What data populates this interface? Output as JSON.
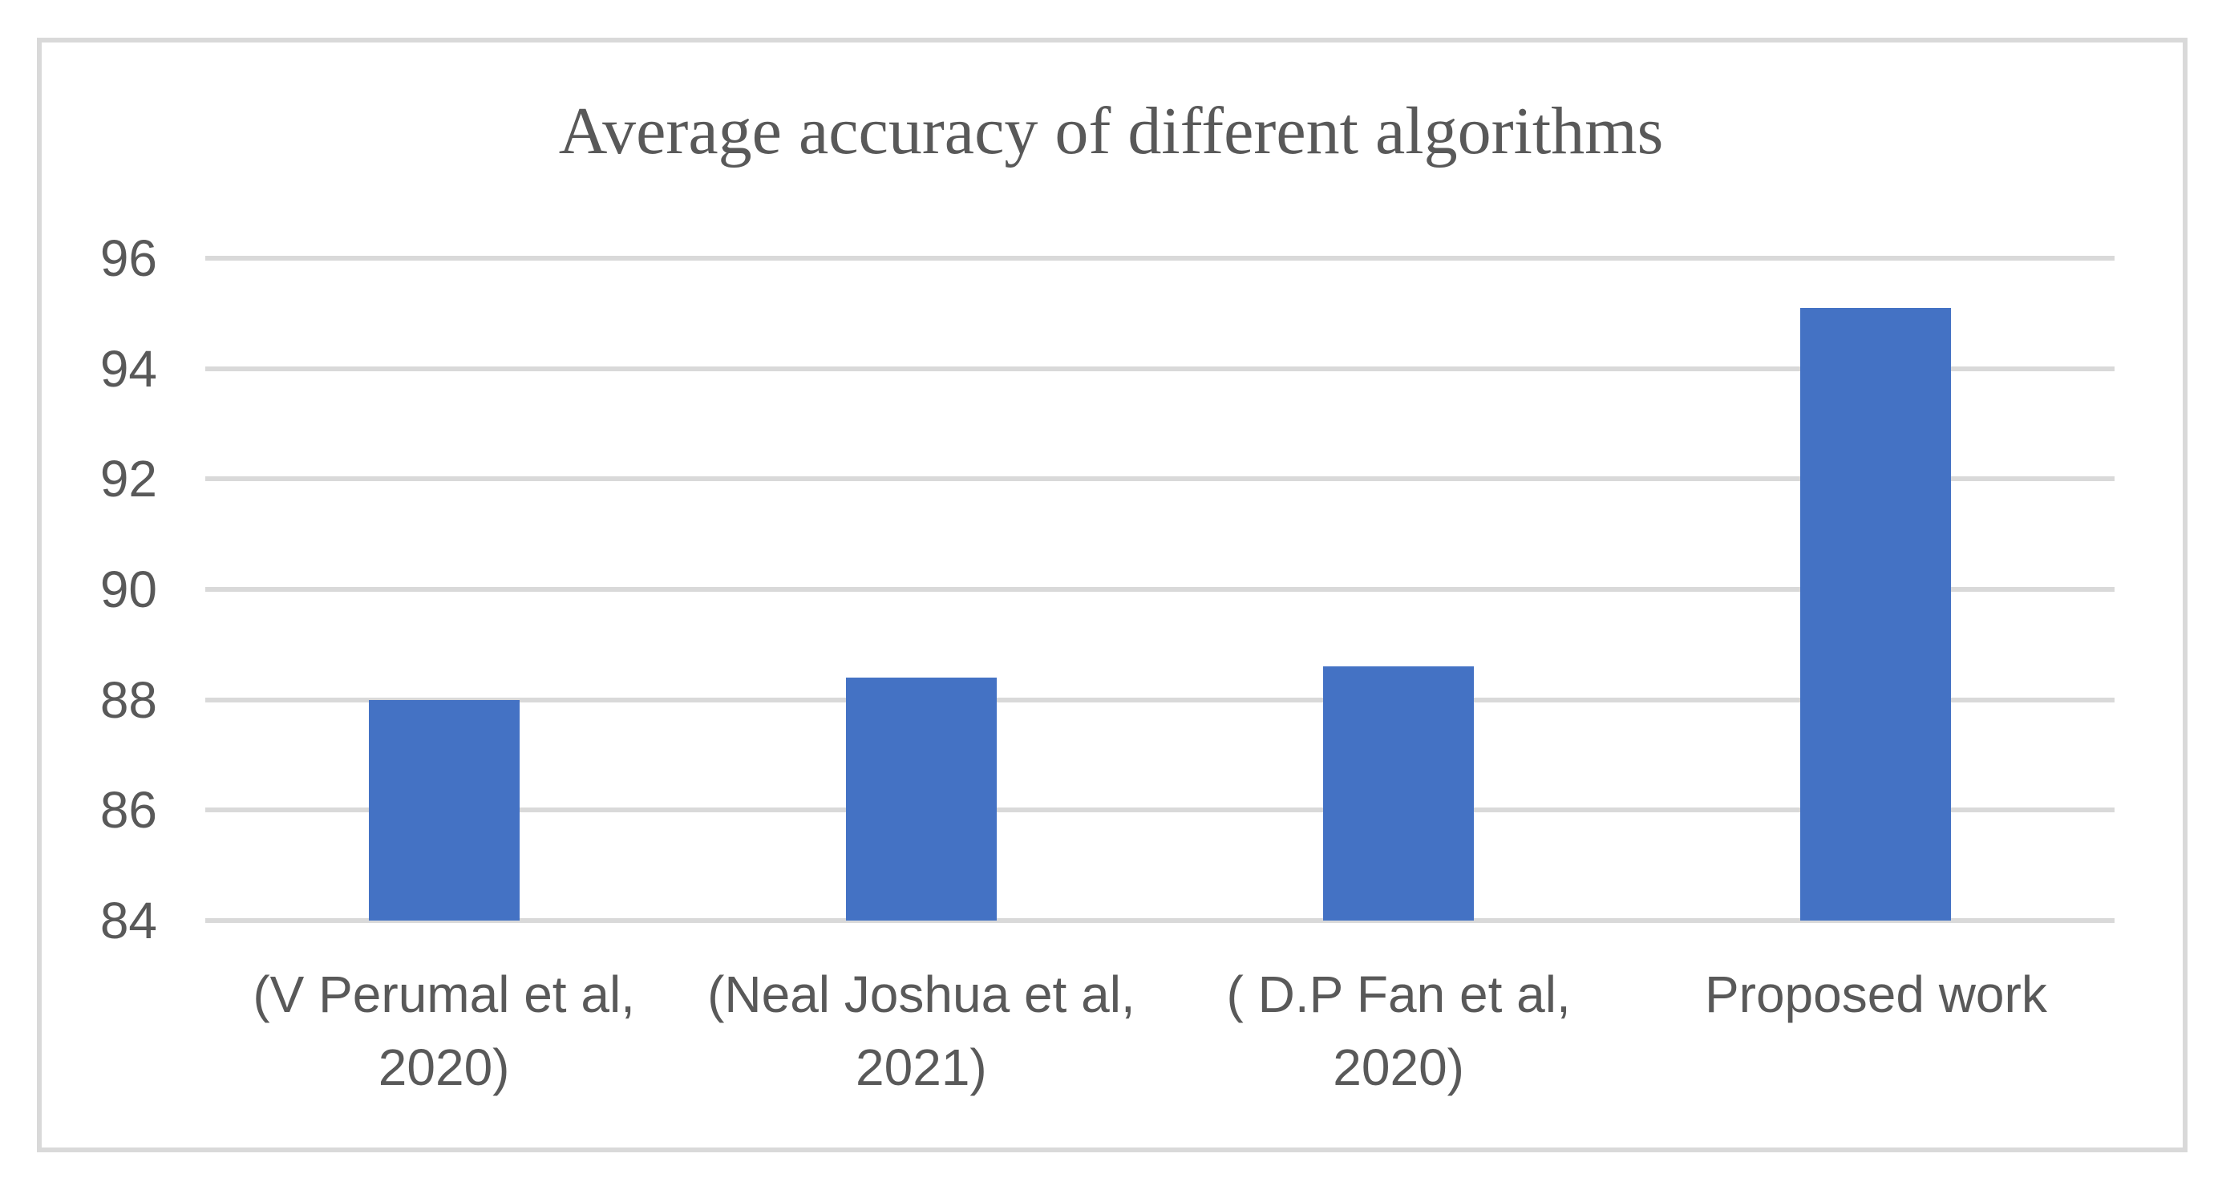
{
  "chart_data": {
    "type": "bar",
    "title": "Average accuracy of different algorithms",
    "categories": [
      "(V Perumal et al, 2020)",
      "(Neal Joshua et al, 2021)",
      "( D.P Fan et al, 2020)",
      "Proposed work"
    ],
    "category_label_lines": [
      [
        "(V Perumal et al,",
        "2020)"
      ],
      [
        "(Neal Joshua et al,",
        "2021)"
      ],
      [
        "( D.P Fan et al,",
        "2020)"
      ],
      [
        "Proposed work"
      ]
    ],
    "values": [
      88,
      88.4,
      88.6,
      95.1
    ],
    "xlabel": "",
    "ylabel": "",
    "ylim": [
      84,
      96
    ],
    "yticks": [
      84,
      86,
      88,
      90,
      92,
      94,
      96
    ],
    "grid": true,
    "legend": false,
    "colors": {
      "bar": "#4472C4",
      "gridline": "#D9D9D9",
      "frame_border": "#D9D9D9",
      "text": "#595959"
    }
  }
}
